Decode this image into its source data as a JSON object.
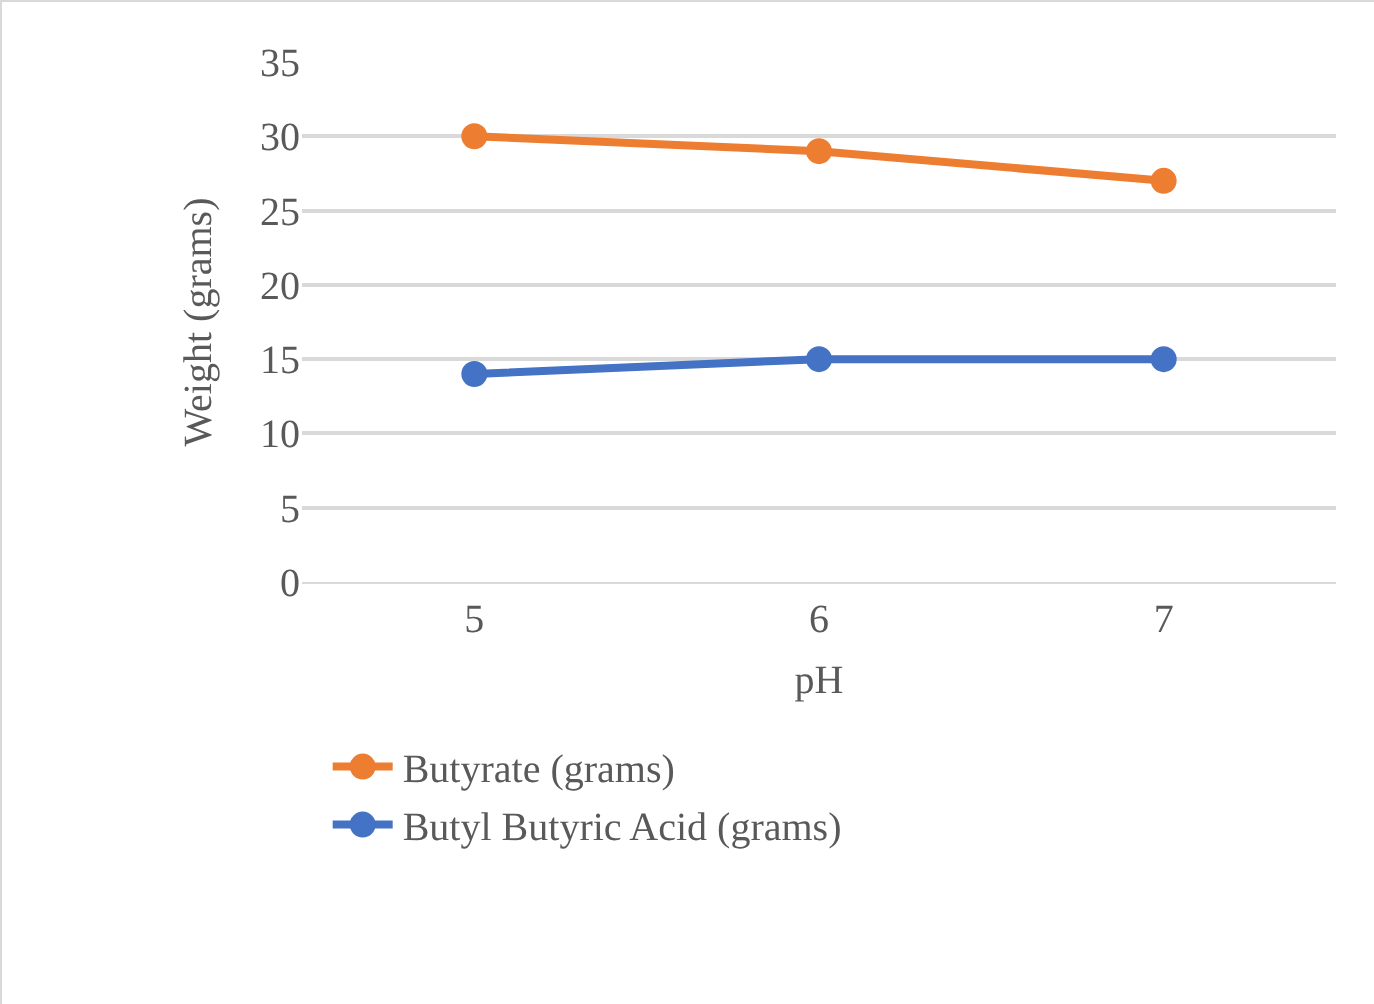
{
  "chart_data": {
    "type": "line",
    "xlabel": "pH",
    "ylabel": "Weight (grams)",
    "categories": [
      "5",
      "6",
      "7"
    ],
    "series": [
      {
        "name": "Butyrate (grams)",
        "color": "#ed7d31",
        "values": [
          30,
          29,
          27
        ]
      },
      {
        "name": "Butyl Butyric Acid (grams)",
        "color": "#4472c4",
        "values": [
          14,
          15,
          15
        ]
      }
    ],
    "ylim": [
      0,
      35
    ],
    "yticks": [
      0,
      5,
      10,
      15,
      20,
      25,
      30,
      35
    ],
    "grid": "y",
    "legend": "bottom",
    "marker": "circle",
    "line_style": "solid"
  }
}
